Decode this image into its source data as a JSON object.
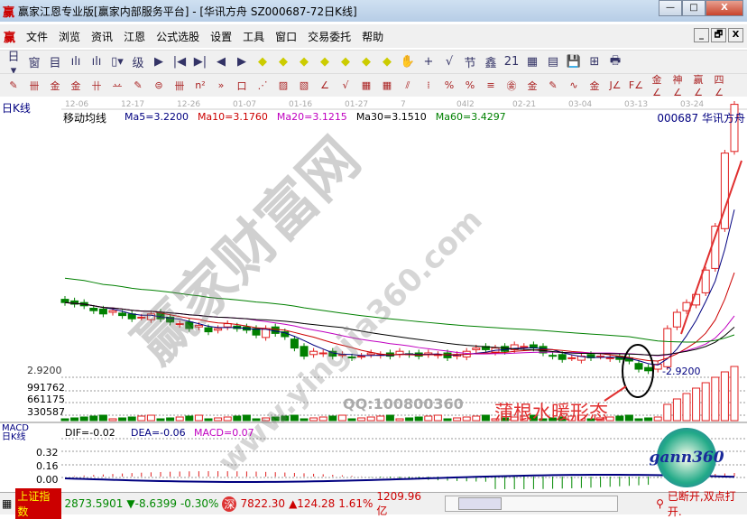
{
  "window": {
    "title": "赢家江恩专业版[赢家内部服务平台] - [华讯方舟  SZ000687-72日K线]",
    "logo": "赢",
    "min": "—",
    "max": "□",
    "close": "X"
  },
  "menu": [
    "文件",
    "浏览",
    "资讯",
    "江恩",
    "公式选股",
    "设置",
    "工具",
    "窗口",
    "交易委托",
    "帮助"
  ],
  "mdi": [
    "_",
    "🗗",
    "X"
  ],
  "toolbar1": [
    "日▾",
    "窗",
    "目",
    "ılı",
    "ılı",
    "▯▾",
    "级",
    "▶",
    "|◀",
    "▶|",
    "◀",
    "▶",
    "◆",
    "◆",
    "◆",
    "◆",
    "◆",
    "◆",
    "◆",
    "✋",
    "+",
    "√",
    "节",
    "鑫",
    "21",
    "▦",
    "▤",
    "💾",
    "⊞",
    "🖶"
  ],
  "toolbar2": [
    "✎",
    "卌",
    "金",
    "金",
    "卄",
    "䒑",
    "✎",
    "⊜",
    "卌",
    "n²",
    "»",
    "口",
    "⋰",
    "▨",
    "▧",
    "∠",
    "√",
    "▦",
    "▦",
    "⫽",
    "⁞",
    "%",
    "%",
    "≡",
    "㊎",
    "金",
    "✎",
    "∿",
    "金",
    "J∠",
    "F∠",
    "金∠",
    "神∠",
    "赢∠",
    "四∠"
  ],
  "chart": {
    "period_label": "日K线",
    "date_ticks": [
      "12-06",
      "12-17",
      "12-26",
      "01-07",
      "01-16",
      "01-27",
      "7",
      "04l2",
      "02-21",
      "03-04",
      "03-13",
      "03-24"
    ],
    "indicator_name": "移动均线",
    "ma_labels": [
      {
        "text": "Ma5=3.2200",
        "color": "#000080"
      },
      {
        "text": "Ma10=3.1760",
        "color": "#cc0000"
      },
      {
        "text": "Ma20=3.1215",
        "color": "#c000c0"
      },
      {
        "text": "Ma30=3.1510",
        "color": "#000000"
      },
      {
        "text": "Ma60=3.4297",
        "color": "#008000"
      }
    ],
    "stock": "000687  华讯方舟",
    "price_label": "2.9200",
    "price_label_right": "-2.9200",
    "volume_ticks": [
      "991762",
      "661175",
      "330587"
    ],
    "watermark": "赢家财富网",
    "watermark_url": "www.yingjia360.com",
    "qq": "QQ:100800360",
    "annotation": "蒲根水暖形态",
    "macd": {
      "name": "MACD",
      "period": "日K线",
      "dif": "DIF=-0.02",
      "dea": "DEA=-0.06",
      "macd": "MACD=0.07",
      "ticks": [
        "0.32",
        "0.16",
        "0.00"
      ]
    },
    "gann_logo": "gann360"
  },
  "chart_data": {
    "type": "candlestick",
    "closes": [
      3.38,
      3.37,
      3.36,
      3.33,
      3.31,
      3.33,
      3.3,
      3.28,
      3.29,
      3.31,
      3.28,
      3.26,
      3.25,
      3.22,
      3.24,
      3.2,
      3.22,
      3.25,
      3.22,
      3.21,
      3.18,
      3.22,
      3.19,
      3.17,
      3.1,
      3.05,
      3.08,
      3.07,
      3.05,
      3.06,
      3.04,
      3.05,
      3.07,
      3.06,
      3.05,
      3.08,
      3.06,
      3.05,
      3.07,
      3.06,
      3.04,
      3.06,
      3.08,
      3.1,
      3.09,
      3.1,
      3.08,
      3.12,
      3.11,
      3.1,
      3.07,
      3.05,
      3.03,
      3.04,
      3.05,
      3.04,
      3.05,
      3.04,
      3.03,
      3.02,
      2.97,
      2.96,
      3.0,
      3.22,
      3.32,
      3.38,
      3.43,
      3.58,
      3.85,
      4.3,
      4.6
    ]
  },
  "status": {
    "index_name": "上证指数",
    "index_value": "2873.5901",
    "index_change": "▼-8.6399",
    "index_pct": "-0.30%",
    "sz_icon": "深",
    "sz_value": "7822.30",
    "sz_change": "▲124.28",
    "sz_pct": "1.61%",
    "amount": "1209.96亿",
    "conn": "已断开,双点打开."
  }
}
